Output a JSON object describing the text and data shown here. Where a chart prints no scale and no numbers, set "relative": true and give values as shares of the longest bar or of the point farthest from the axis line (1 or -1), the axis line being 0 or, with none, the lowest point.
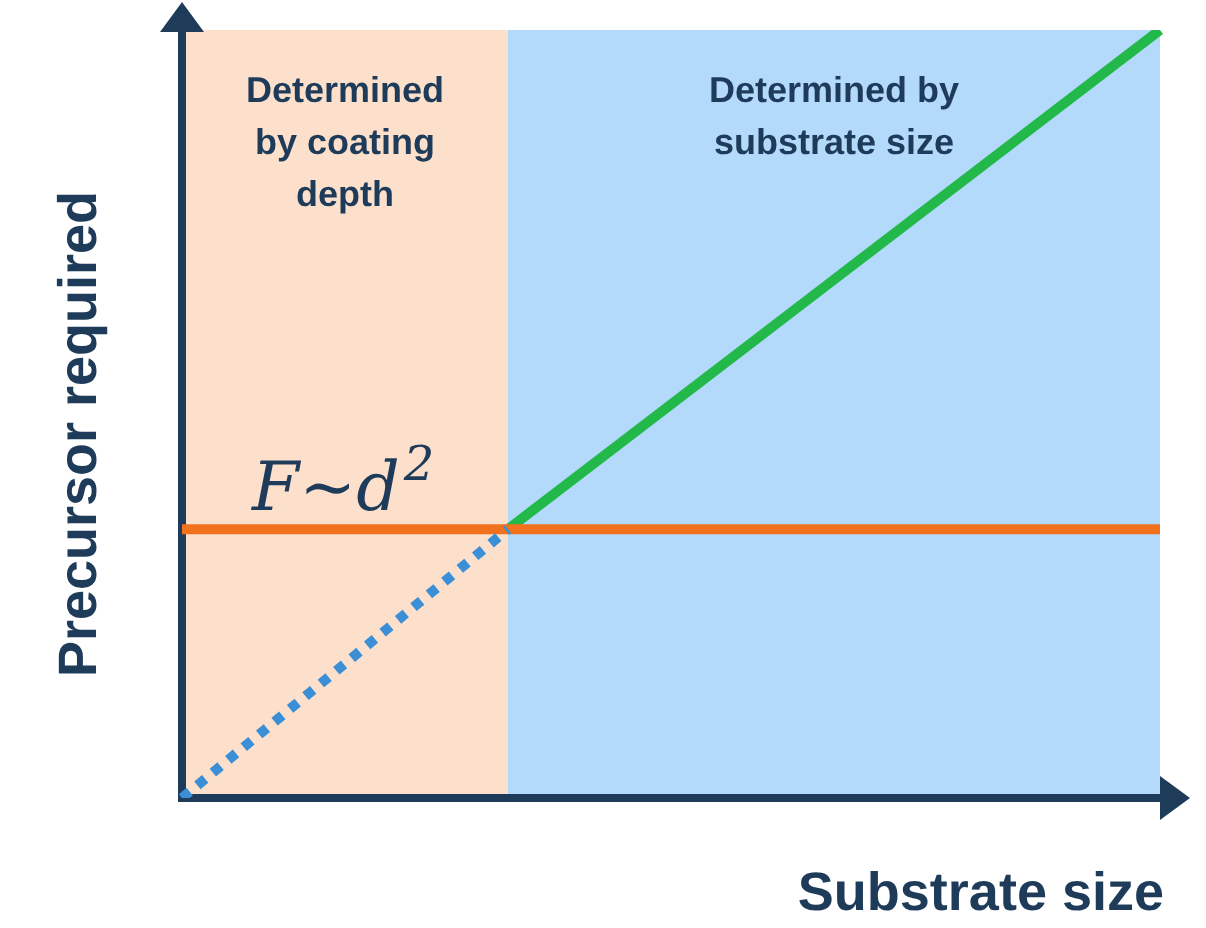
{
  "chart_data": {
    "type": "line",
    "relative": true,
    "xlabel": "Substrate size",
    "ylabel": "Precursor required",
    "legend": false,
    "marker": "none",
    "categories": [
      null,
      null,
      null,
      null
    ],
    "series": [
      {
        "color": "#3a8fd6",
        "line_style": "dotted",
        "values": [
          0,
          0.35,
          null,
          null
        ]
      },
      {
        "color": "#f2711c",
        "line_style": "solid",
        "values": [
          0.35,
          0.35,
          0.35,
          0.35
        ]
      },
      {
        "color": "#22b84a",
        "line_style": "solid",
        "values": [
          null,
          0.35,
          0.675,
          1
        ]
      }
    ],
    "annotations": [
      "Determined by coating depth",
      "Determined by substrate size",
      "F~d$^{2}$"
    ]
  }
}
